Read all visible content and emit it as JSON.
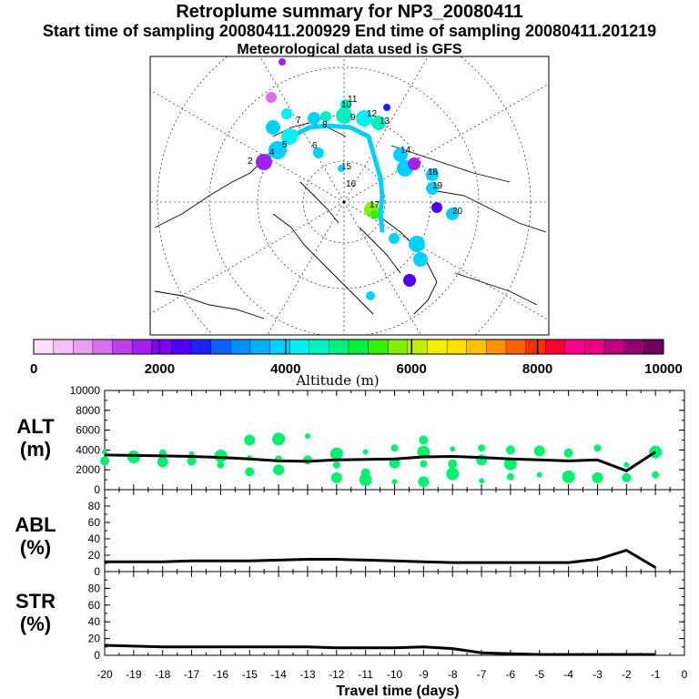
{
  "header": {
    "title": "Retroplume summary for NP3_20080411",
    "sampling": "Start time of sampling 20080411.200929     End time of sampling 20080411.201219",
    "met": "Meteorological data used is GFS"
  },
  "colorbar": {
    "label": "Altitude (m)",
    "ticks": [
      "0",
      "2000",
      "4000",
      "6000",
      "8000",
      "10000"
    ],
    "colors": [
      "#ffe0ff",
      "#f4c0f8",
      "#e8a0f0",
      "#d870ec",
      "#c040e8",
      "#a020f0",
      "#8000f8",
      "#5000ff",
      "#2020ff",
      "#1060ff",
      "#0090ff",
      "#00b0ff",
      "#00d0ff",
      "#00f0f0",
      "#00f0c0",
      "#00f080",
      "#00f040",
      "#30f000",
      "#80f000",
      "#c0f000",
      "#f0f000",
      "#ffe000",
      "#ffc000",
      "#ff9000",
      "#ff6000",
      "#ff3000",
      "#ff0030",
      "#ff0090",
      "#f00080",
      "#c00080",
      "#900070",
      "#700060"
    ]
  },
  "map": {
    "labels": [
      "2",
      "4",
      "5",
      "6",
      "7",
      "8",
      "9",
      "10",
      "11",
      "12",
      "13",
      "14",
      "15",
      "16",
      "17",
      "18",
      "19",
      "20"
    ]
  },
  "panels": {
    "alt": {
      "label1": "ALT",
      "label2": "(m)"
    },
    "abl": {
      "label1": "ABL",
      "label2": "(%)"
    },
    "str": {
      "label1": "STR",
      "label2": "(%)"
    }
  },
  "chart_data": [
    {
      "type": "line",
      "name": "ALT",
      "ylabel": "ALT (m)",
      "ylim": [
        0,
        10000
      ],
      "yticks": [
        0,
        2000,
        4000,
        6000,
        8000,
        10000
      ],
      "x": [
        -20,
        -19,
        -18,
        -17,
        -16,
        -15,
        -14,
        -13,
        -12,
        -11,
        -10,
        -9,
        -8,
        -7,
        -6,
        -5,
        -4,
        -3,
        -2,
        -1
      ],
      "y": [
        3500,
        3450,
        3400,
        3350,
        3250,
        3100,
        2900,
        2850,
        3000,
        3050,
        3100,
        3300,
        3350,
        3250,
        3100,
        3000,
        2900,
        3000,
        1900,
        3800
      ],
      "scatter_color": "#00f070",
      "scatter": [
        [
          -20,
          3800
        ],
        [
          -20,
          2900
        ],
        [
          -19,
          3300
        ],
        [
          -18,
          3700
        ],
        [
          -18,
          2800
        ],
        [
          -17,
          3600
        ],
        [
          -17,
          2900
        ],
        [
          -16,
          3400
        ],
        [
          -16,
          2500
        ],
        [
          -15,
          5000
        ],
        [
          -15,
          3200
        ],
        [
          -15,
          1800
        ],
        [
          -14,
          5100
        ],
        [
          -14,
          3100
        ],
        [
          -14,
          2000
        ],
        [
          -13,
          5400
        ],
        [
          -13,
          3000
        ],
        [
          -12,
          3600
        ],
        [
          -12,
          2500
        ],
        [
          -12,
          1200
        ],
        [
          -11,
          3800
        ],
        [
          -11,
          1700
        ],
        [
          -11,
          1000
        ],
        [
          -10,
          4200
        ],
        [
          -10,
          2700
        ],
        [
          -10,
          800
        ],
        [
          -9,
          5000
        ],
        [
          -9,
          3800
        ],
        [
          -9,
          2600
        ],
        [
          -9,
          800
        ],
        [
          -8,
          4100
        ],
        [
          -8,
          2600
        ],
        [
          -8,
          1600
        ],
        [
          -7,
          4200
        ],
        [
          -7,
          3000
        ],
        [
          -7,
          900
        ],
        [
          -6,
          4000
        ],
        [
          -6,
          2600
        ],
        [
          -6,
          1300
        ],
        [
          -5,
          3900
        ],
        [
          -5,
          1500
        ],
        [
          -4,
          3700
        ],
        [
          -4,
          1300
        ],
        [
          -3,
          4200
        ],
        [
          -3,
          1200
        ],
        [
          -2,
          2500
        ],
        [
          -2,
          1200
        ],
        [
          -1,
          3800
        ],
        [
          -1,
          1500
        ]
      ]
    },
    {
      "type": "line",
      "name": "ABL",
      "ylabel": "ABL (%)",
      "ylim": [
        0,
        100
      ],
      "yticks": [
        0,
        20,
        40,
        60,
        80
      ],
      "x": [
        -20,
        -19,
        -18,
        -17,
        -16,
        -15,
        -14,
        -13,
        -12,
        -11,
        -10,
        -9,
        -8,
        -7,
        -6,
        -5,
        -4,
        -3,
        -2,
        -1
      ],
      "y": [
        12,
        12,
        12,
        13,
        13,
        13,
        14,
        15,
        15,
        14,
        13,
        12,
        11,
        11,
        11,
        11,
        11,
        15,
        26,
        5
      ]
    },
    {
      "type": "line",
      "name": "STR",
      "ylabel": "STR (%)",
      "ylim": [
        0,
        100
      ],
      "yticks": [
        0,
        20,
        40,
        60,
        80
      ],
      "x": [
        -20,
        -19,
        -18,
        -17,
        -16,
        -15,
        -14,
        -13,
        -12,
        -11,
        -10,
        -9,
        -8,
        -7,
        -6,
        -5,
        -4,
        -3,
        -2,
        -1
      ],
      "y": [
        12,
        11,
        10,
        10,
        10,
        10,
        10,
        10,
        9,
        9,
        9,
        10,
        8,
        3,
        2,
        1,
        1,
        1,
        1,
        1
      ],
      "xlabel": "Travel time (days)",
      "xticks": [
        -20,
        -19,
        -18,
        -17,
        -16,
        -15,
        -14,
        -13,
        -12,
        -11,
        -10,
        -9,
        -8,
        -7,
        -6,
        -5,
        -4,
        -3,
        -2,
        -1,
        0
      ]
    }
  ]
}
